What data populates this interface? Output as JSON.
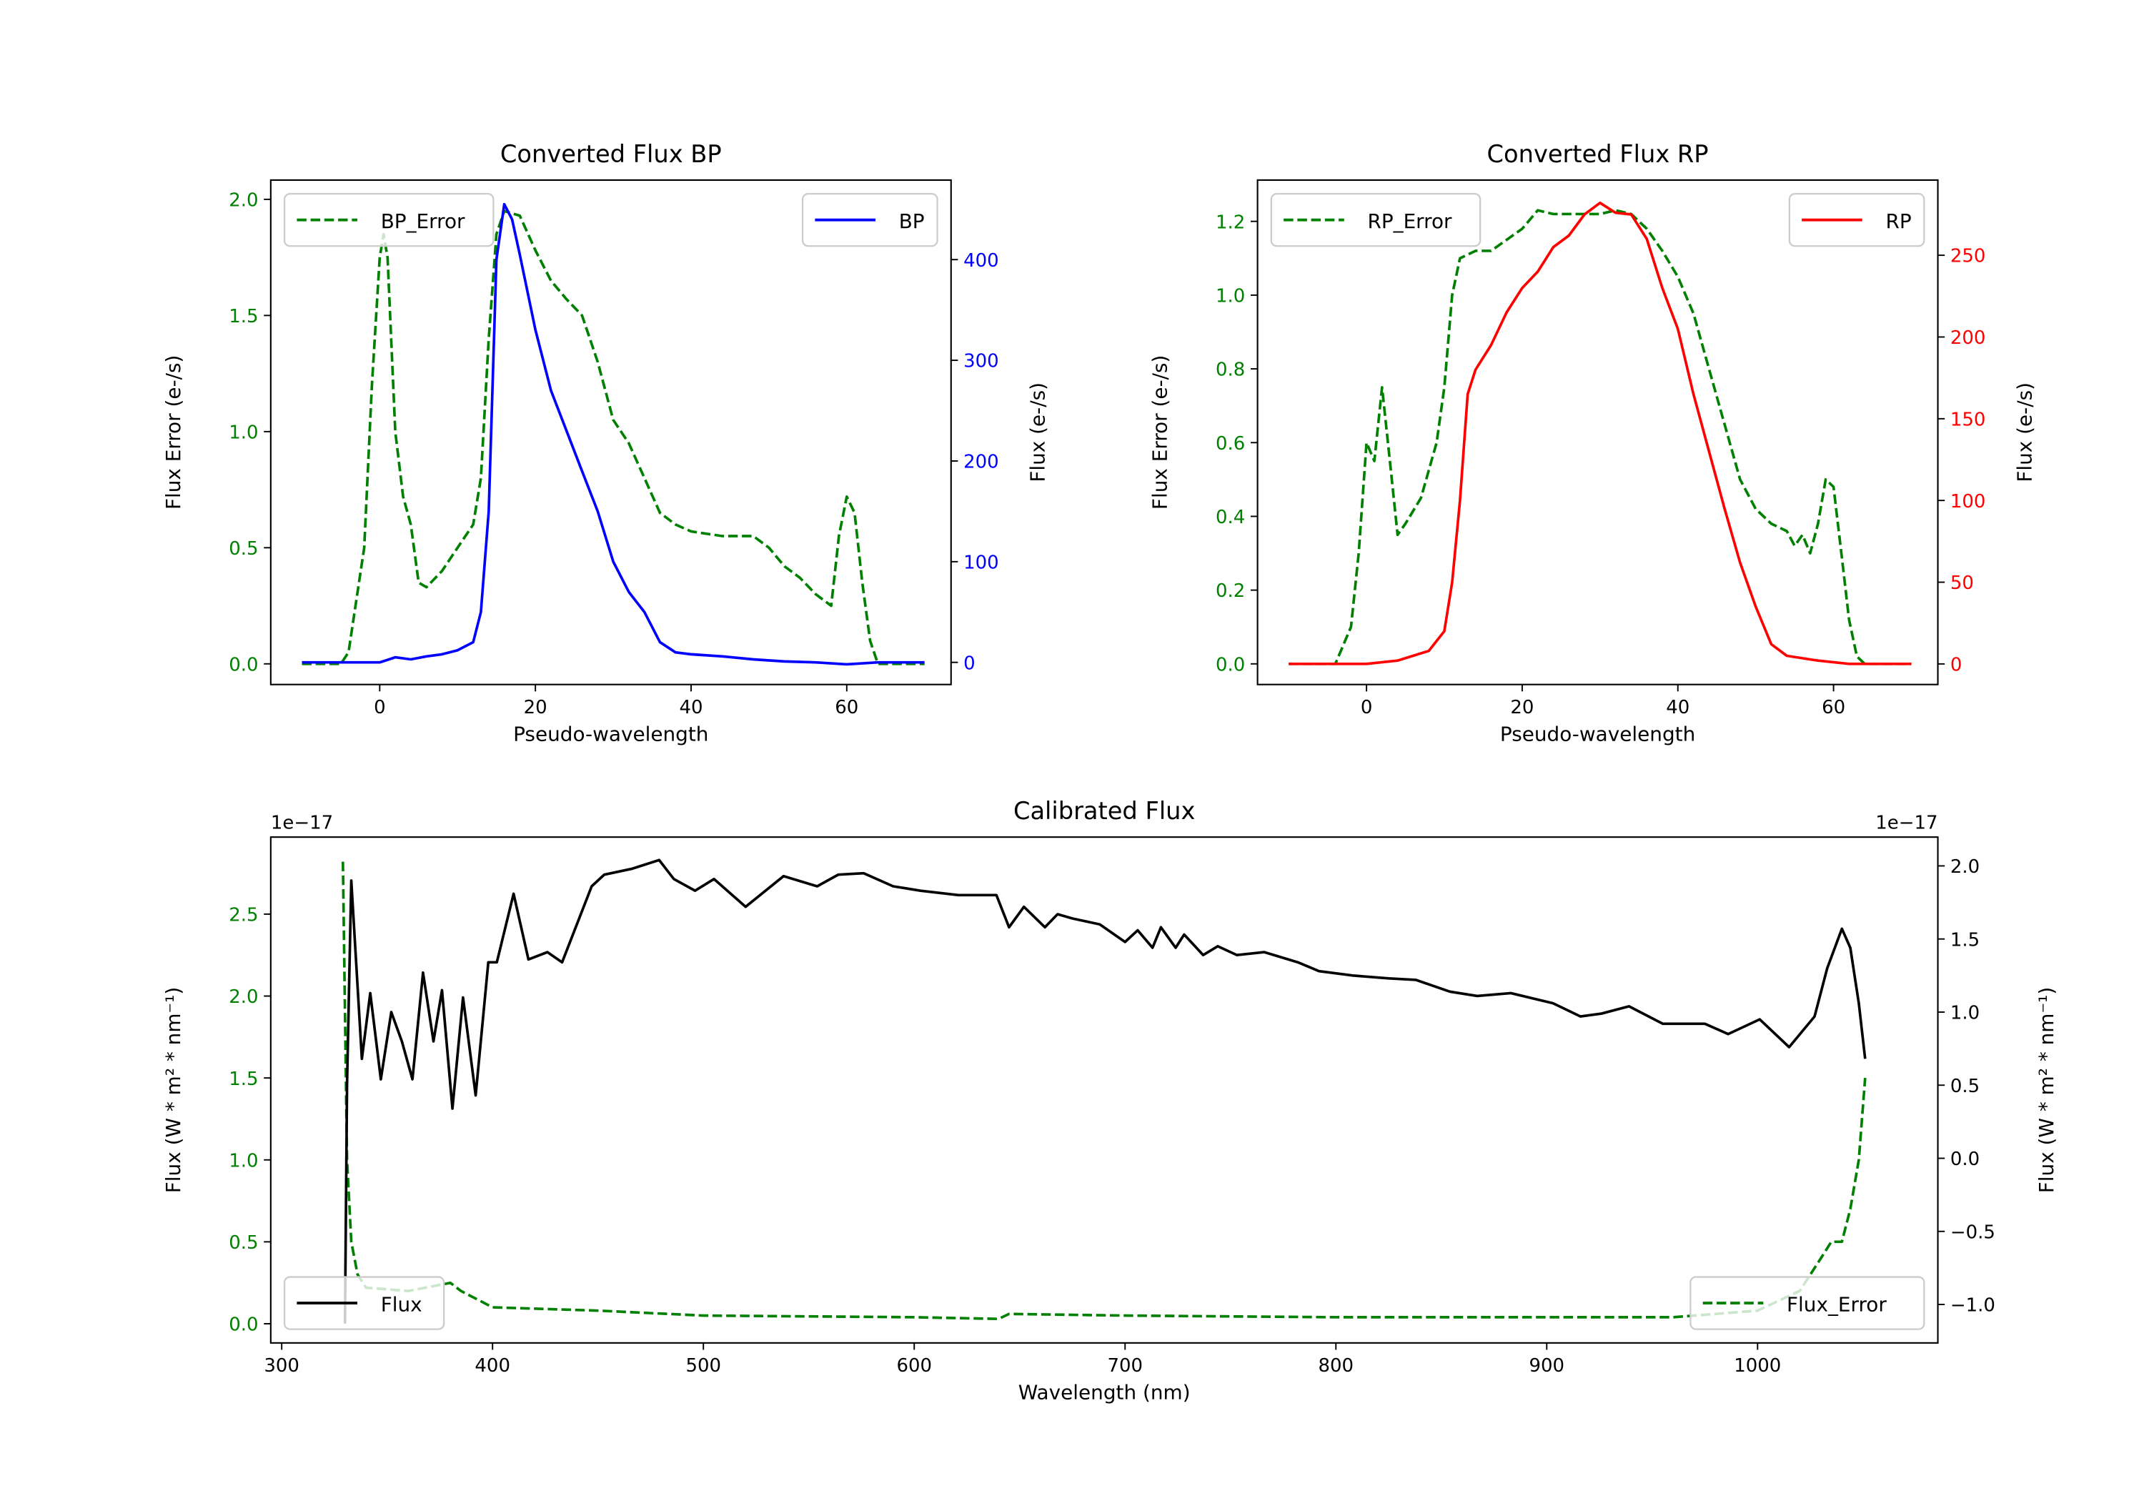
{
  "chart_data": [
    {
      "type": "line",
      "id": "bp",
      "title": "Converted Flux BP",
      "xlabel": "Pseudo-wavelength",
      "ylabel_left": "Flux Error (e-/s)",
      "ylabel_right": "Flux (e-/s)",
      "left_color": "#008000",
      "right_color": "#0000ff",
      "xlim": [
        -14,
        73.4
      ],
      "ylim_left": [
        -0.089,
        2.083
      ],
      "ylim_right": [
        -22,
        479
      ],
      "xticks": [
        0,
        20,
        40,
        60
      ],
      "xtick_labels": [
        "0",
        "20",
        "40",
        "60"
      ],
      "yticks_left": [
        0,
        0.5,
        1.0,
        1.5,
        2.0
      ],
      "ytick_labels_left": [
        "0.0",
        "0.5",
        "1.0",
        "1.5",
        "2.0"
      ],
      "yticks_right": [
        0,
        100,
        200,
        300,
        400
      ],
      "ytick_labels_right": [
        "0",
        "100",
        "200",
        "300",
        "400"
      ],
      "legend_left": "top-left",
      "legend_right": "top-right",
      "series": [
        {
          "name": "BP_Error",
          "axis": "left",
          "color": "#008000",
          "dashed": true,
          "x": [
            -10,
            -5,
            -4,
            -2,
            -1,
            0,
            0.5,
            1,
            2,
            3,
            4,
            5,
            6,
            8,
            10,
            12,
            13,
            14,
            15,
            16,
            18,
            20,
            22,
            24,
            26,
            28,
            30,
            32,
            34,
            36,
            38,
            40,
            44,
            48,
            50,
            52,
            54,
            56,
            58,
            59,
            60,
            61,
            62,
            63,
            64,
            70
          ],
          "y": [
            0,
            0,
            0.05,
            0.5,
            1.2,
            1.75,
            1.85,
            1.75,
            1.0,
            0.72,
            0.6,
            0.35,
            0.33,
            0.4,
            0.5,
            0.6,
            0.8,
            1.4,
            1.85,
            1.95,
            1.93,
            1.78,
            1.65,
            1.57,
            1.5,
            1.3,
            1.05,
            0.95,
            0.8,
            0.65,
            0.6,
            0.57,
            0.55,
            0.55,
            0.5,
            0.42,
            0.37,
            0.3,
            0.25,
            0.55,
            0.72,
            0.65,
            0.35,
            0.1,
            0,
            0
          ]
        },
        {
          "name": "BP",
          "axis": "right",
          "color": "#0000ff",
          "dashed": false,
          "x": [
            -10,
            -5,
            0,
            2,
            4,
            6,
            8,
            10,
            12,
            13,
            14,
            15,
            16,
            17,
            18,
            20,
            22,
            24,
            26,
            28,
            30,
            32,
            34,
            36,
            38,
            40,
            44,
            48,
            52,
            56,
            60,
            64,
            70
          ],
          "y": [
            0,
            0,
            0,
            5,
            3,
            6,
            8,
            12,
            20,
            50,
            150,
            400,
            455,
            440,
            405,
            330,
            270,
            230,
            190,
            150,
            100,
            70,
            50,
            20,
            10,
            8,
            6,
            3,
            1,
            0,
            -2,
            0,
            0
          ]
        }
      ]
    },
    {
      "type": "line",
      "id": "rp",
      "title": "Converted Flux RP",
      "xlabel": "Pseudo-wavelength",
      "ylabel_left": "Flux Error (e-/s)",
      "ylabel_right": "Flux (e-/s)",
      "left_color": "#008000",
      "right_color": "#ff0000",
      "xlim": [
        -14,
        73.4
      ],
      "ylim_left": [
        -0.056,
        1.312
      ],
      "ylim_right": [
        -12.6,
        296
      ],
      "xticks": [
        0,
        20,
        40,
        60
      ],
      "xtick_labels": [
        "0",
        "20",
        "40",
        "60"
      ],
      "yticks_left": [
        0,
        0.2,
        0.4,
        0.6,
        0.8,
        1.0,
        1.2
      ],
      "ytick_labels_left": [
        "0.0",
        "0.2",
        "0.4",
        "0.6",
        "0.8",
        "1.0",
        "1.2"
      ],
      "yticks_right": [
        0,
        50,
        100,
        150,
        200,
        250
      ],
      "ytick_labels_right": [
        "0",
        "50",
        "100",
        "150",
        "200",
        "250"
      ],
      "legend_left": "top-left",
      "legend_right": "top-right",
      "series": [
        {
          "name": "RP_Error",
          "axis": "left",
          "color": "#008000",
          "dashed": true,
          "x": [
            -10,
            -4,
            -2,
            -1,
            0,
            1,
            2,
            3,
            4,
            5,
            7,
            9,
            10,
            11,
            12,
            14,
            16,
            18,
            20,
            22,
            24,
            26,
            28,
            30,
            32,
            34,
            36,
            38,
            40,
            42,
            44,
            46,
            48,
            50,
            52,
            54,
            55,
            56,
            57,
            58,
            59,
            60,
            61,
            62,
            63,
            64,
            70
          ],
          "y": [
            0,
            0,
            0.1,
            0.3,
            0.6,
            0.55,
            0.75,
            0.55,
            0.35,
            0.38,
            0.45,
            0.6,
            0.75,
            1.0,
            1.1,
            1.12,
            1.12,
            1.15,
            1.18,
            1.23,
            1.22,
            1.22,
            1.22,
            1.22,
            1.23,
            1.22,
            1.18,
            1.12,
            1.05,
            0.95,
            0.8,
            0.65,
            0.5,
            0.42,
            0.38,
            0.36,
            0.32,
            0.35,
            0.3,
            0.38,
            0.5,
            0.48,
            0.3,
            0.12,
            0.02,
            0,
            0
          ]
        },
        {
          "name": "RP",
          "axis": "right",
          "color": "#ff0000",
          "dashed": false,
          "x": [
            -10,
            0,
            4,
            8,
            10,
            11,
            12,
            13,
            14,
            16,
            18,
            20,
            22,
            24,
            26,
            28,
            30,
            32,
            34,
            36,
            38,
            40,
            42,
            44,
            46,
            48,
            50,
            52,
            54,
            58,
            62,
            70
          ],
          "y": [
            0,
            0,
            2,
            8,
            20,
            50,
            100,
            165,
            180,
            195,
            215,
            230,
            240,
            255,
            262,
            275,
            282,
            276,
            275,
            260,
            230,
            205,
            165,
            130,
            95,
            62,
            35,
            12,
            5,
            2,
            0,
            0
          ]
        }
      ]
    },
    {
      "type": "line",
      "id": "cal",
      "title": "Calibrated Flux",
      "xlabel": "Wavelength (nm)",
      "ylabel_left": "Flux (W * m² * nm⁻¹)",
      "ylabel_right": "Flux (W * m² * nm⁻¹)",
      "offset_left": "1e−17",
      "offset_right": "1e−17",
      "left_color": "#008000",
      "right_color": "#000000",
      "xlim": [
        294.8,
        1085.5
      ],
      "ylim_left": [
        -0.117,
        2.97
      ],
      "ylim_right": [
        -1.263,
        2.197
      ],
      "xticks": [
        300,
        400,
        500,
        600,
        700,
        800,
        900,
        1000
      ],
      "xtick_labels": [
        "300",
        "400",
        "500",
        "600",
        "700",
        "800",
        "900",
        "1000"
      ],
      "yticks_left": [
        0,
        0.5,
        1.0,
        1.5,
        2.0,
        2.5
      ],
      "ytick_labels_left": [
        "0.0",
        "0.5",
        "1.0",
        "1.5",
        "2.0",
        "2.5"
      ],
      "yticks_right": [
        -1.0,
        -0.5,
        0,
        0.5,
        1.0,
        1.5,
        2.0
      ],
      "ytick_labels_right": [
        "−1.0",
        "−0.5",
        "0.0",
        "0.5",
        "1.0",
        "1.5",
        "2.0"
      ],
      "legend_left": "bottom-right",
      "legend_right": "bottom-left",
      "series": [
        {
          "name": "Flux_Error",
          "axis": "left",
          "color": "#008000",
          "dashed": true,
          "x": [
            329,
            331,
            333,
            336,
            340,
            360,
            380,
            385,
            400,
            450,
            500,
            600,
            640,
            645,
            700,
            800,
            900,
            960,
            1000,
            1020,
            1030,
            1035,
            1040,
            1044,
            1048,
            1051
          ],
          "y": [
            2.82,
            1.0,
            0.5,
            0.3,
            0.22,
            0.2,
            0.25,
            0.2,
            0.1,
            0.08,
            0.05,
            0.04,
            0.03,
            0.06,
            0.05,
            0.04,
            0.04,
            0.04,
            0.08,
            0.2,
            0.4,
            0.5,
            0.5,
            0.7,
            1.0,
            1.5
          ]
        },
        {
          "name": "Flux",
          "axis": "right",
          "color": "#000000",
          "dashed": false,
          "x": [
            330,
            331,
            333,
            338,
            342,
            347,
            352,
            357,
            362,
            367,
            372,
            376,
            381,
            386,
            392,
            398,
            402,
            410,
            417,
            426,
            433,
            447,
            453,
            466,
            479,
            486,
            496,
            505,
            520,
            538,
            554,
            564,
            576,
            590,
            603,
            621,
            639,
            645,
            652,
            662,
            668,
            675,
            688,
            700,
            706,
            713,
            717,
            724,
            728,
            737,
            744,
            753,
            766,
            782,
            792,
            808,
            825,
            838,
            854,
            867,
            883,
            903,
            916,
            926,
            939,
            955,
            975,
            986,
            1001,
            1015,
            1027,
            1033,
            1040,
            1044,
            1048,
            1051
          ],
          "y": [
            -1.13,
            0.5,
            1.9,
            0.68,
            1.13,
            0.54,
            1.0,
            0.8,
            0.54,
            1.27,
            0.8,
            1.15,
            0.34,
            1.1,
            0.43,
            1.34,
            1.34,
            1.81,
            1.36,
            1.41,
            1.34,
            1.86,
            1.94,
            1.98,
            2.04,
            1.91,
            1.83,
            1.91,
            1.72,
            1.93,
            1.86,
            1.94,
            1.95,
            1.86,
            1.83,
            1.8,
            1.8,
            1.58,
            1.72,
            1.58,
            1.67,
            1.64,
            1.6,
            1.48,
            1.56,
            1.44,
            1.58,
            1.44,
            1.53,
            1.39,
            1.45,
            1.39,
            1.41,
            1.34,
            1.28,
            1.25,
            1.23,
            1.22,
            1.14,
            1.11,
            1.13,
            1.06,
            0.97,
            0.99,
            1.04,
            0.92,
            0.92,
            0.85,
            0.95,
            0.76,
            0.97,
            1.3,
            1.57,
            1.44,
            1.06,
            0.68
          ]
        }
      ]
    }
  ]
}
